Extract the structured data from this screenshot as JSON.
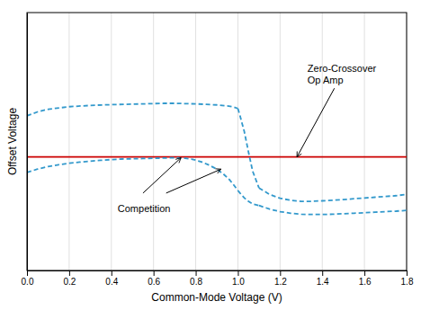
{
  "chart_data": {
    "type": "line",
    "x_label": "Common-Mode Voltage (V)",
    "y_label": "Offset Voltage",
    "xlim": [
      0,
      1.8
    ],
    "ylim": [
      0,
      1
    ],
    "xticks": [
      {
        "value": 0,
        "label": "0.0"
      },
      0.2,
      0.4,
      0.6,
      0.8,
      {
        "value": 1,
        "label": "1.0"
      },
      1.2,
      1.4,
      1.6,
      1.8
    ],
    "grid": true,
    "tick_labels": "x",
    "series": [
      {
        "type": "hline",
        "values": [
          0.44
        ],
        "color": "#cc0000",
        "line_style": "solid"
      },
      {
        "x": [
          0.0,
          0.05,
          0.1,
          0.2,
          0.3,
          0.4,
          0.5,
          0.6,
          0.65,
          0.7,
          0.75,
          0.8,
          0.85,
          0.9,
          0.95,
          0.98,
          1.0
        ],
        "values": [
          0.6,
          0.615,
          0.625,
          0.635,
          0.64,
          0.643,
          0.645,
          0.647,
          0.648,
          0.648,
          0.647,
          0.646,
          0.644,
          0.642,
          0.638,
          0.634,
          0.628
        ],
        "color": "#3399cc",
        "line_style": "dashed"
      },
      {
        "x": [
          0.0,
          0.05,
          0.1,
          0.15,
          0.2,
          0.25,
          0.3,
          0.35,
          0.4,
          0.45,
          0.5,
          0.55,
          0.6,
          0.65,
          0.7,
          0.75,
          0.78,
          0.8,
          0.83,
          0.86,
          0.9,
          0.93,
          0.96,
          0.98,
          1.0
        ],
        "values": [
          0.38,
          0.393,
          0.403,
          0.41,
          0.416,
          0.42,
          0.424,
          0.427,
          0.43,
          0.432,
          0.433,
          0.434,
          0.435,
          0.436,
          0.437,
          0.435,
          0.432,
          0.428,
          0.42,
          0.41,
          0.393,
          0.375,
          0.352,
          0.332,
          0.31
        ],
        "color": "#3399cc",
        "line_style": "dashed"
      },
      {
        "x": [
          1.0,
          1.01,
          1.03,
          1.05,
          1.07,
          1.1
        ],
        "values": [
          0.628,
          0.6,
          0.54,
          0.46,
          0.385,
          0.32
        ],
        "color": "#3399cc",
        "line_style": "dashed"
      },
      {
        "x": [
          1.0,
          1.01,
          1.03,
          1.05,
          1.07,
          1.1
        ],
        "values": [
          0.31,
          0.3,
          0.282,
          0.268,
          0.258,
          0.252
        ],
        "color": "#3399cc",
        "line_style": "dashed"
      },
      {
        "x": [
          1.1,
          1.15,
          1.2,
          1.25,
          1.3,
          1.35,
          1.4,
          1.45,
          1.5,
          1.55,
          1.6,
          1.65,
          1.7,
          1.75,
          1.8
        ],
        "values": [
          0.32,
          0.295,
          0.28,
          0.272,
          0.268,
          0.268,
          0.27,
          0.272,
          0.275,
          0.278,
          0.281,
          0.284,
          0.287,
          0.29,
          0.295
        ],
        "color": "#3399cc",
        "line_style": "dashed"
      },
      {
        "x": [
          1.1,
          1.15,
          1.2,
          1.25,
          1.3,
          1.35,
          1.4,
          1.45,
          1.5,
          1.55,
          1.6,
          1.65,
          1.7,
          1.75,
          1.8
        ],
        "values": [
          0.252,
          0.238,
          0.228,
          0.222,
          0.218,
          0.217,
          0.217,
          0.218,
          0.22,
          0.222,
          0.224,
          0.226,
          0.228,
          0.23,
          0.233
        ],
        "color": "#3399cc",
        "line_style": "dashed"
      }
    ],
    "annotations": [
      {
        "text": "Zero-Crossover\nOp Amp",
        "x": 1.33,
        "y": 0.76,
        "arrows": [
          {
            "x": 1.28,
            "y": 0.44
          }
        ]
      },
      {
        "text": "Competition",
        "x": 0.43,
        "y": 0.24,
        "arrows": [
          {
            "from": [
              0.55,
              0.3
            ],
            "x": 0.73,
            "y": 0.437
          },
          {
            "from": [
              0.66,
              0.3
            ],
            "x": 0.92,
            "y": 0.393
          }
        ]
      }
    ]
  }
}
